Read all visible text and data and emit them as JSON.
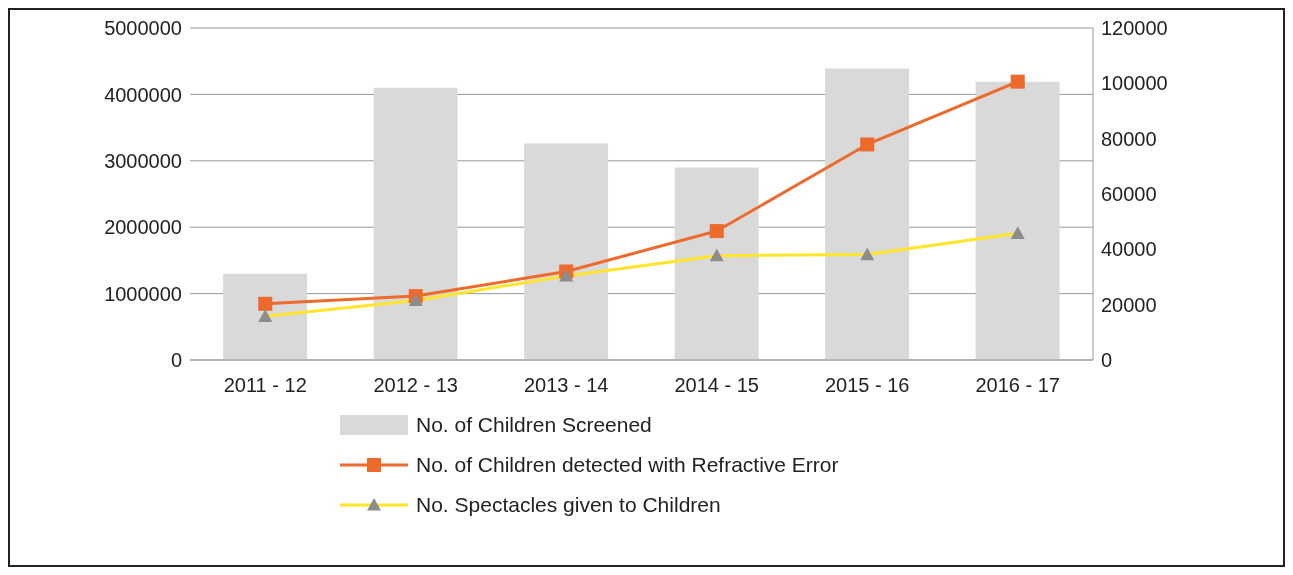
{
  "chart_data": {
    "type": "bar",
    "categories": [
      "2011 - 12",
      "2012 - 13",
      "2013 - 14",
      "2014 - 15",
      "2015 - 16",
      "2016 - 17"
    ],
    "series": [
      {
        "name": "No. of Children Screened",
        "color": "#d9d9d9",
        "values": [
          1300000,
          4100000,
          3260000,
          2900000,
          4390000,
          4190000
        ]
      },
      {
        "name": "No. of Children detected with Refractive Error",
        "type": "line",
        "axis": "y2",
        "marker": "square",
        "color": "#ed6a2d",
        "values": [
          20300,
          23100,
          32000,
          46600,
          77900,
          100600
        ]
      },
      {
        "name": "No. Spectacles given to Children",
        "type": "line",
        "axis": "y2",
        "marker": "triangle",
        "color": "#ffe52b",
        "values": [
          15800,
          21500,
          30400,
          37700,
          38100,
          45800
        ]
      }
    ],
    "ylim": [
      0,
      5000000
    ],
    "yticks": [
      0,
      1000000,
      2000000,
      3000000,
      4000000,
      5000000
    ],
    "y2lim": [
      0,
      120000
    ],
    "y2ticks": [
      0,
      20000,
      40000,
      60000,
      80000,
      100000,
      120000
    ],
    "grid": "y",
    "legend": "bottom"
  }
}
